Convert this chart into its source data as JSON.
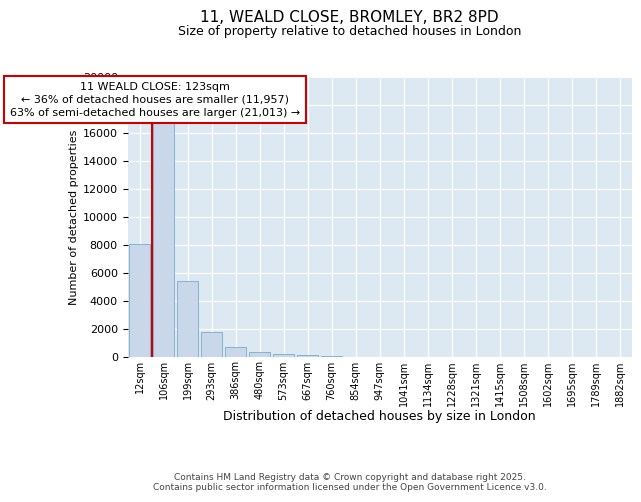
{
  "title1": "11, WEALD CLOSE, BROMLEY, BR2 8PD",
  "title2": "Size of property relative to detached houses in London",
  "xlabel": "Distribution of detached houses by size in London",
  "ylabel": "Number of detached properties",
  "categories": [
    "12sqm",
    "106sqm",
    "199sqm",
    "293sqm",
    "386sqm",
    "480sqm",
    "573sqm",
    "667sqm",
    "760sqm",
    "854sqm",
    "947sqm",
    "1041sqm",
    "1134sqm",
    "1228sqm",
    "1321sqm",
    "1415sqm",
    "1508sqm",
    "1602sqm",
    "1695sqm",
    "1789sqm",
    "1882sqm"
  ],
  "values": [
    8100,
    16700,
    5400,
    1800,
    750,
    350,
    200,
    150,
    80,
    0,
    0,
    0,
    0,
    0,
    0,
    0,
    0,
    0,
    0,
    0,
    0
  ],
  "bar_color": "#c8d8ea",
  "bar_edge_color": "#7aaac8",
  "vline_color": "#cc0000",
  "vline_x": 0.5,
  "annotation_line1": "11 WEALD CLOSE: 123sqm",
  "annotation_line2": "← 36% of detached houses are smaller (11,957)",
  "annotation_line3": "63% of semi-detached houses are larger (21,013) →",
  "ann_box_edgecolor": "#cc0000",
  "ann_box_facecolor": "#ffffff",
  "ylim": [
    0,
    20000
  ],
  "yticks": [
    0,
    2000,
    4000,
    6000,
    8000,
    10000,
    12000,
    14000,
    16000,
    18000,
    20000
  ],
  "plot_bg": "#dce8f2",
  "fig_bg": "#ffffff",
  "grid_color": "#ffffff",
  "footer": "Contains HM Land Registry data © Crown copyright and database right 2025.\nContains public sector information licensed under the Open Government Licence v3.0.",
  "title1_fontsize": 11,
  "title2_fontsize": 9,
  "xlabel_fontsize": 9,
  "ylabel_fontsize": 8,
  "tick_fontsize": 8,
  "ann_fontsize": 8,
  "footer_fontsize": 6.5
}
